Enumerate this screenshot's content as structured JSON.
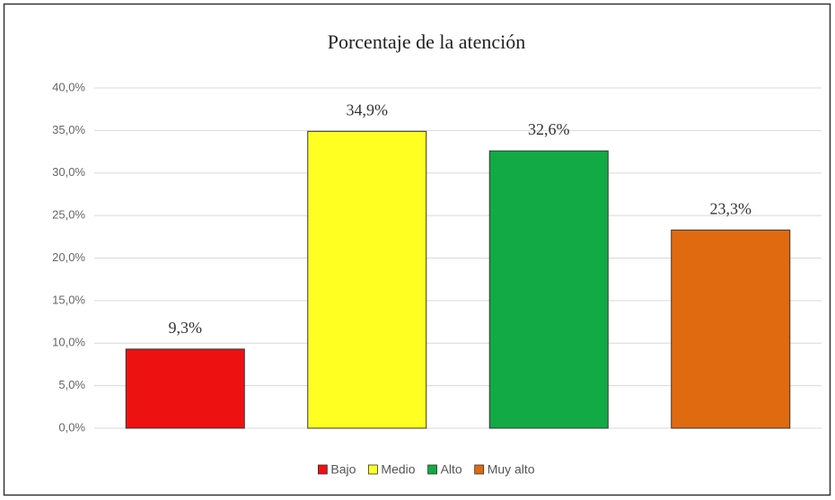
{
  "chart_data": {
    "type": "bar",
    "title": "Porcentaje de la atención",
    "categories": [
      "Bajo",
      "Medio",
      "Alto",
      "Muy alto"
    ],
    "values": [
      9.3,
      34.9,
      32.6,
      23.3
    ],
    "value_labels": [
      "9,3%",
      "34,9%",
      "32,6%",
      "23,3%"
    ],
    "colors": [
      "#ee1111",
      "#ffff22",
      "#11aa44",
      "#e06a10"
    ],
    "ylim": [
      0,
      40
    ],
    "yticks": [
      {
        "value": 0,
        "label": "0,0%"
      },
      {
        "value": 5,
        "label": "5,0%"
      },
      {
        "value": 10,
        "label": "10,0%"
      },
      {
        "value": 15,
        "label": "15,0%"
      },
      {
        "value": 20,
        "label": "20,0%"
      },
      {
        "value": 25,
        "label": "25,0%"
      },
      {
        "value": 30,
        "label": "30,0%"
      },
      {
        "value": 35,
        "label": "35,0%"
      },
      {
        "value": 40,
        "label": "40,0%"
      }
    ],
    "grid": true,
    "legend": "bottom"
  }
}
